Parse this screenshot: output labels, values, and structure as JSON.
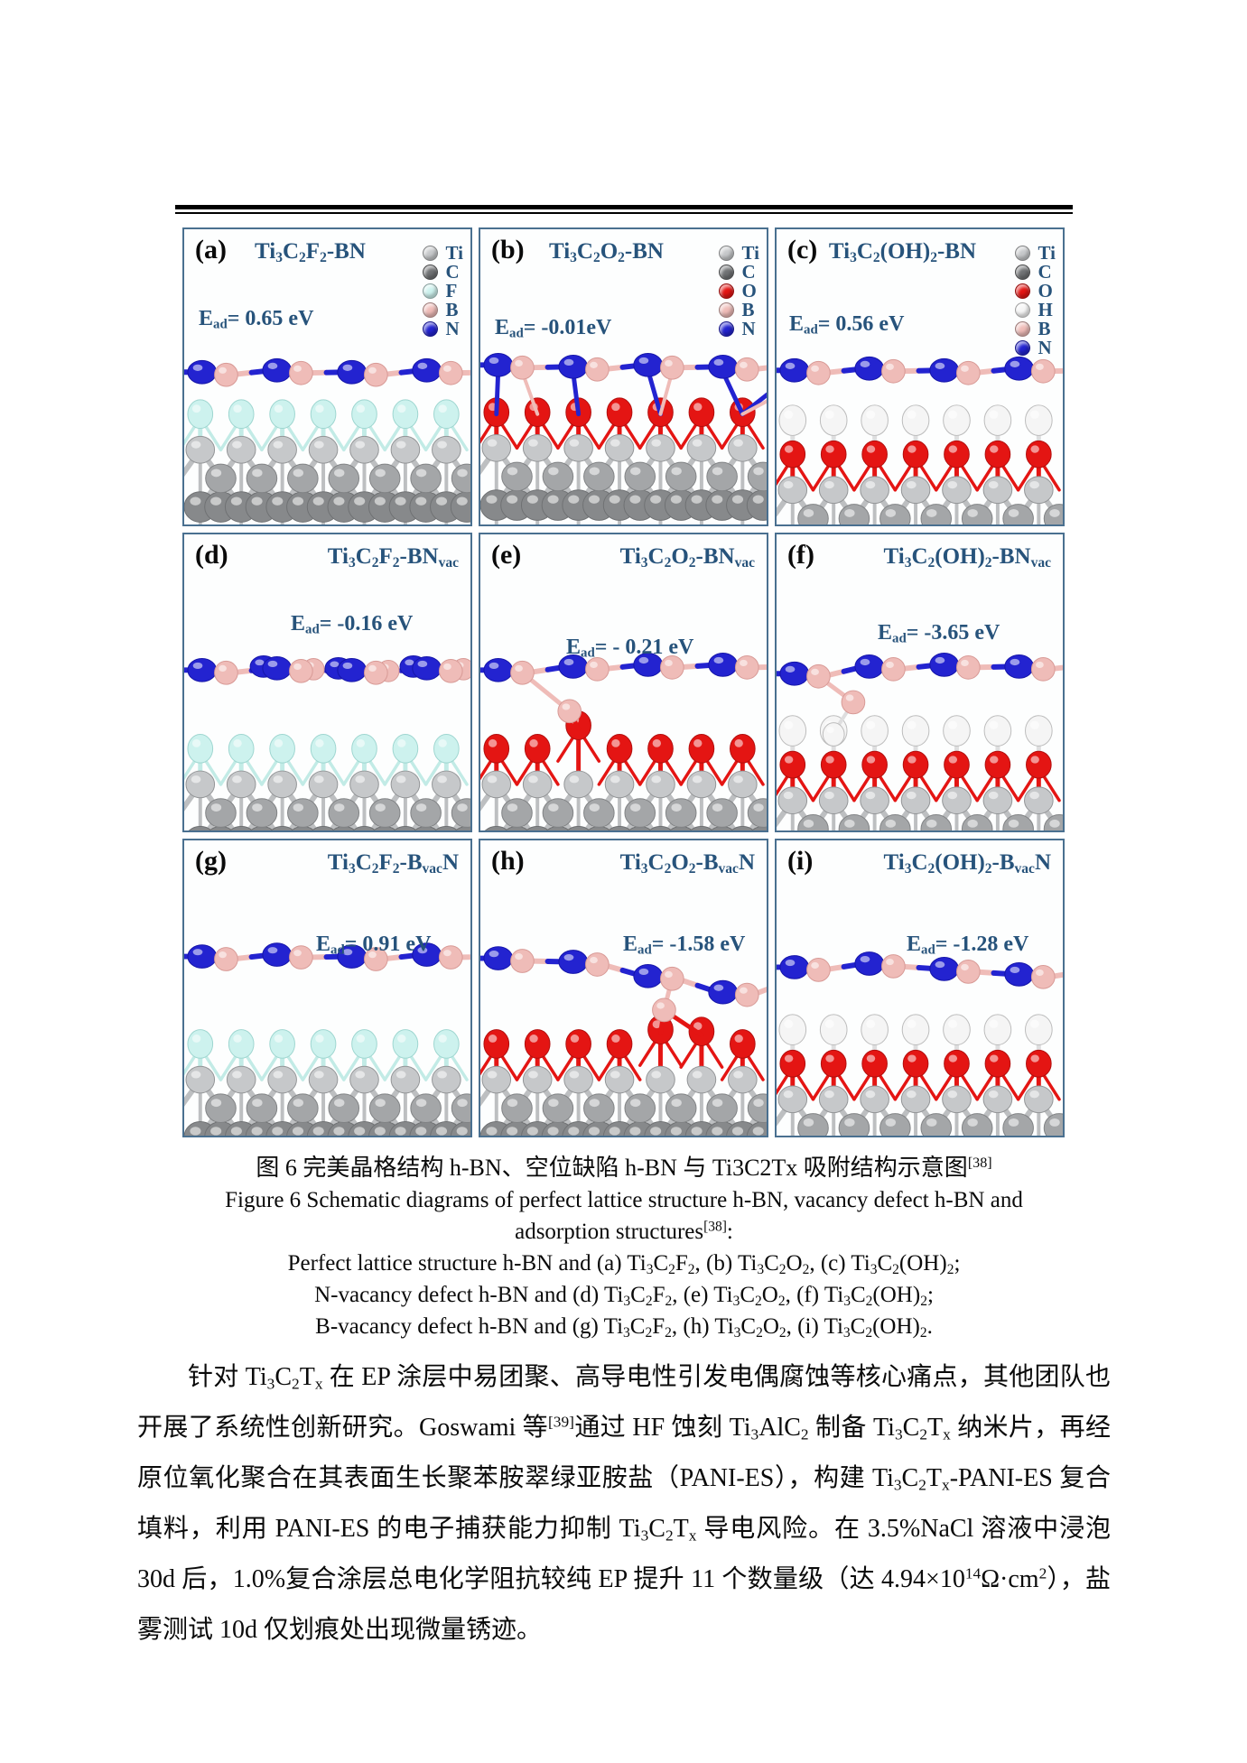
{
  "palette": {
    "heading_blue": "#27537b",
    "panel_border": "#4a7090",
    "atom_ti": "#c6c8ca",
    "atom_ti_mid": "#a4a6a8",
    "atom_ti_dark": "#87898b",
    "atom_c_legend": "#707274",
    "atom_f": "#cdf2ee",
    "atom_b": "#efbcb8",
    "atom_n": "#2323d0",
    "atom_o": "#e41513",
    "atom_h": "#f5f5f5",
    "bond_gray": "#bdbfc1"
  },
  "figure": {
    "panels": [
      {
        "id": "(a)",
        "title_html": "Ti<sub>3</sub>C<sub>2</sub>F<sub>2</sub>-BN",
        "ead_html": "E<sub>ad</sub>= 0.65 eV",
        "legend": [
          {
            "el": "Ti",
            "color": "#c6c8ca"
          },
          {
            "el": "C",
            "color": "#707274"
          },
          {
            "el": "F",
            "color": "#cdf2ee"
          },
          {
            "el": "B",
            "color": "#efbcb8"
          },
          {
            "el": "N",
            "color": "#2323d0"
          }
        ],
        "structure": {
          "terminal": "F",
          "mode": "flat"
        }
      },
      {
        "id": "(b)",
        "title_html": "Ti<sub>3</sub>C<sub>2</sub>O<sub>2</sub>-BN",
        "ead_html": "E<sub>ad</sub>= -0.01eV",
        "legend": [
          {
            "el": "Ti",
            "color": "#c6c8ca"
          },
          {
            "el": "C",
            "color": "#707274"
          },
          {
            "el": "O",
            "color": "#e41513"
          },
          {
            "el": "B",
            "color": "#efbcb8"
          },
          {
            "el": "N",
            "color": "#2323d0"
          }
        ],
        "structure": {
          "terminal": "O",
          "mode": "attached"
        }
      },
      {
        "id": "(c)",
        "title_html": "Ti<sub>3</sub>C<sub>2</sub>(OH)<sub>2</sub>-BN",
        "ead_html": "E<sub>ad</sub>= 0.56 eV",
        "legend": [
          {
            "el": "Ti",
            "color": "#c6c8ca"
          },
          {
            "el": "C",
            "color": "#707274"
          },
          {
            "el": "O",
            "color": "#e41513"
          },
          {
            "el": "H",
            "color": "#f5f5f5"
          },
          {
            "el": "B",
            "color": "#efbcb8"
          },
          {
            "el": "N",
            "color": "#2323d0"
          }
        ],
        "structure": {
          "terminal": "OH",
          "mode": "flat"
        }
      },
      {
        "id": "(d)",
        "title_html": "Ti<sub>3</sub>C<sub>2</sub>F<sub>2</sub>-BN<sub>vac</sub>",
        "ead_html": "E<sub>ad</sub>= -0.16 eV",
        "legend": [],
        "structure": {
          "terminal": "F",
          "mode": "flat2"
        }
      },
      {
        "id": "(e)",
        "title_html": "Ti<sub>3</sub>C<sub>2</sub>O<sub>2</sub>-BN<sub>vac</sub>",
        "ead_html": "E<sub>ad</sub>= - 0.21 eV",
        "legend": [],
        "structure": {
          "terminal": "O",
          "mode": "dipB"
        }
      },
      {
        "id": "(f)",
        "title_html": "Ti<sub>3</sub>C<sub>2</sub>(OH)<sub>2</sub>-BN<sub>vac</sub>",
        "ead_html": "E<sub>ad</sub>= -3.65 eV",
        "legend": [],
        "structure": {
          "terminal": "OH",
          "mode": "dipBH"
        }
      },
      {
        "id": "(g)",
        "title_html": "Ti<sub>3</sub>C<sub>2</sub>F<sub>2</sub>-B<sub>vac</sub>N",
        "ead_html": "E<sub>ad</sub>= 0.91 eV",
        "legend": [],
        "structure": {
          "terminal": "F",
          "mode": "flat"
        }
      },
      {
        "id": "(h)",
        "title_html": "Ti<sub>3</sub>C<sub>2</sub>O<sub>2</sub>-B<sub>vac</sub>N",
        "ead_html": "E<sub>ad</sub>= -1.58 eV",
        "legend": [],
        "structure": {
          "terminal": "O",
          "mode": "dipB2"
        }
      },
      {
        "id": "(i)",
        "title_html": "Ti<sub>3</sub>C<sub>2</sub>(OH)<sub>2</sub>-B<sub>vac</sub>N",
        "ead_html": "E<sub>ad</sub>= -1.28 eV",
        "legend": [],
        "structure": {
          "terminal": "OH",
          "mode": "wave"
        }
      }
    ]
  },
  "captions": {
    "zh_html": "图 6 完美晶格结构 h-BN、空位缺陷 h-BN 与 Ti3C2Tx 吸附结构示意图<sup>[38]</sup>",
    "en1": "Figure 6 Schematic diagrams of perfect lattice structure h-BN, vacancy defect h-BN and",
    "en2_html": "adsorption structures<sup>[38]</sup>:",
    "item_a_html": "Perfect lattice structure h-BN and (a) Ti<sub>3</sub>C<sub>2</sub>F<sub>2</sub>, (b) Ti<sub>3</sub>C<sub>2</sub>O<sub>2</sub>, (c) Ti<sub>3</sub>C<sub>2</sub>(OH)<sub>2</sub>;",
    "item_b_html": "N-vacancy defect h-BN and (d) Ti<sub>3</sub>C<sub>2</sub>F<sub>2</sub>, (e) Ti<sub>3</sub>C<sub>2</sub>O<sub>2</sub>, (f) Ti<sub>3</sub>C<sub>2</sub>(OH)<sub>2</sub>;",
    "item_c_html": "B-vacancy defect h-BN and (g) Ti<sub>3</sub>C<sub>2</sub>F<sub>2</sub>, (h) Ti<sub>3</sub>C<sub>2</sub>O<sub>2</sub>, (i) Ti<sub>3</sub>C<sub>2</sub>(OH)<sub>2</sub>."
  },
  "paragraph": {
    "html": "针对 Ti<sub>3</sub>C<sub>2</sub>T<sub>x</sub> 在 EP 涂层中易团聚、高导电性引发电偶腐蚀等核心痛点，其他团队也开展了系统性创新研究。Goswami 等<sup>[39]</sup>通过 HF 蚀刻 Ti<sub>3</sub>AlC<sub>2</sub> 制备 Ti<sub>3</sub>C<sub>2</sub>T<sub>x</sub> 纳米片，再经原位氧化聚合在其表面生长聚苯胺翠绿亚胺盐（PANI-ES），构建 Ti<sub>3</sub>C<sub>2</sub>T<sub>x</sub>-PANI-ES 复合填料，利用 PANI-ES 的电子捕获能力抑制 Ti<sub>3</sub>C<sub>2</sub>T<sub>x</sub> 导电风险。在 3.5%NaCl 溶液中浸泡 30d 后，1.0%复合涂层总电化学阻抗较纯 EP 提升 11 个数量级（达 4.94×10<sup>14</sup>Ω·cm<sup>2</sup>），盐雾测试 10d 仅划痕处出现微量锈迹。"
  }
}
